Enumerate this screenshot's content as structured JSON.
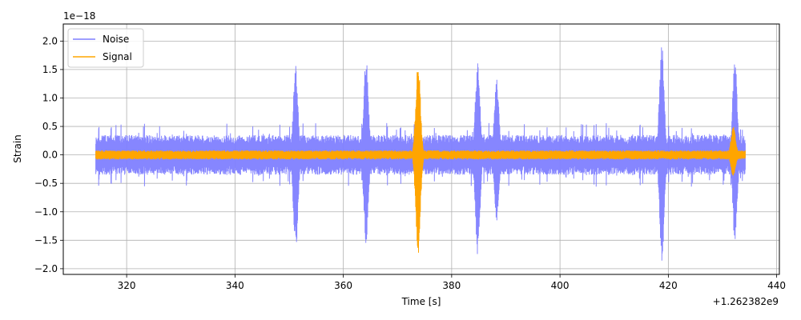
{
  "chart_data": {
    "type": "line",
    "xlabel": "Time [s]",
    "ylabel": "Strain",
    "y_scale_label": "1e−18",
    "x_offset_label": "+1.262382e9",
    "xlim": [
      308.3,
      440.5
    ],
    "ylim": [
      -2.1,
      2.3
    ],
    "x_ticks": [
      320,
      340,
      360,
      380,
      400,
      420,
      440
    ],
    "y_ticks": [
      -2.0,
      -1.5,
      -1.0,
      -0.5,
      0.0,
      0.5,
      1.0,
      1.5,
      2.0
    ],
    "x_tick_labels": [
      "320",
      "340",
      "360",
      "380",
      "400",
      "420",
      "440"
    ],
    "y_tick_labels": [
      "−2.0",
      "−1.5",
      "−1.0",
      "−0.5",
      "0.0",
      "0.5",
      "1.0",
      "1.5",
      "2.0"
    ],
    "grid": true,
    "legend_position": "top-left",
    "x_range": [
      314.3,
      434.2
    ],
    "series": [
      {
        "name": "Noise",
        "color": "#7f7fff",
        "baseline_amplitude": 0.35,
        "bursts": [
          {
            "t": 351.2,
            "max": 1.6,
            "min": -1.72
          },
          {
            "t": 364.2,
            "max": 1.75,
            "min": -1.6
          },
          {
            "t": 384.8,
            "max": 1.7,
            "min": -1.8
          },
          {
            "t": 388.3,
            "max": 1.4,
            "min": -1.25
          },
          {
            "t": 418.8,
            "max": 2.08,
            "min": -1.9
          },
          {
            "t": 432.3,
            "max": 1.7,
            "min": -1.55
          }
        ]
      },
      {
        "name": "Signal",
        "color": "#ffa500",
        "baseline_amplitude": 0.08,
        "bursts": [
          {
            "t": 373.8,
            "max": 1.67,
            "min": -1.85
          },
          {
            "t": 432.0,
            "max": 0.5,
            "min": -0.4
          }
        ]
      }
    ]
  }
}
